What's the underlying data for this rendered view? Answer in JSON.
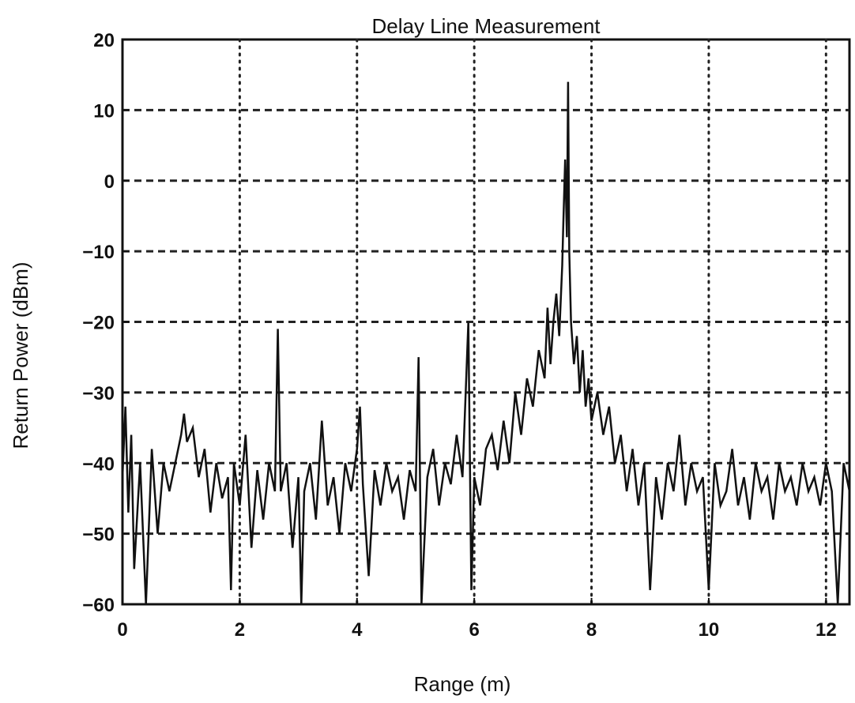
{
  "chart_data": {
    "type": "line",
    "title": "Delay Line Measurement",
    "xlabel": "Range (m)",
    "ylabel": "Return Power (dBm)",
    "xlim": [
      0,
      12.4
    ],
    "ylim": [
      -60,
      20
    ],
    "x_ticks": [
      0,
      2,
      4,
      6,
      8,
      10,
      12
    ],
    "y_ticks": [
      20,
      10,
      0,
      -10,
      -20,
      -30,
      -40,
      -50,
      -60
    ],
    "x_tick_labels": [
      "0",
      "2",
      "4",
      "6",
      "8",
      "10",
      "12"
    ],
    "y_tick_labels": [
      "20",
      "10",
      "0",
      "−10",
      "−20",
      "−30",
      "−40",
      "−50",
      "−60"
    ],
    "grid": true,
    "grid_style": "dotted",
    "noise_floor_dBm": -43,
    "series": [
      {
        "color": "#111111",
        "points": [
          [
            0.0,
            -42
          ],
          [
            0.05,
            -32
          ],
          [
            0.1,
            -47
          ],
          [
            0.15,
            -36
          ],
          [
            0.2,
            -55
          ],
          [
            0.3,
            -40
          ],
          [
            0.4,
            -60
          ],
          [
            0.5,
            -38
          ],
          [
            0.6,
            -50
          ],
          [
            0.7,
            -40
          ],
          [
            0.8,
            -44
          ],
          [
            0.9,
            -40
          ],
          [
            1.0,
            -36
          ],
          [
            1.05,
            -33
          ],
          [
            1.1,
            -37
          ],
          [
            1.2,
            -35
          ],
          [
            1.3,
            -42
          ],
          [
            1.4,
            -38
          ],
          [
            1.5,
            -47
          ],
          [
            1.6,
            -40
          ],
          [
            1.7,
            -45
          ],
          [
            1.8,
            -42
          ],
          [
            1.85,
            -58
          ],
          [
            1.9,
            -40
          ],
          [
            2.0,
            -46
          ],
          [
            2.1,
            -36
          ],
          [
            2.2,
            -52
          ],
          [
            2.3,
            -41
          ],
          [
            2.4,
            -48
          ],
          [
            2.5,
            -40
          ],
          [
            2.6,
            -44
          ],
          [
            2.65,
            -21
          ],
          [
            2.7,
            -44
          ],
          [
            2.8,
            -40
          ],
          [
            2.9,
            -52
          ],
          [
            3.0,
            -42
          ],
          [
            3.05,
            -60
          ],
          [
            3.1,
            -44
          ],
          [
            3.2,
            -40
          ],
          [
            3.3,
            -48
          ],
          [
            3.4,
            -34
          ],
          [
            3.5,
            -46
          ],
          [
            3.6,
            -42
          ],
          [
            3.7,
            -50
          ],
          [
            3.8,
            -40
          ],
          [
            3.9,
            -44
          ],
          [
            4.0,
            -38
          ],
          [
            4.05,
            -32
          ],
          [
            4.1,
            -43
          ],
          [
            4.2,
            -56
          ],
          [
            4.3,
            -41
          ],
          [
            4.4,
            -46
          ],
          [
            4.5,
            -40
          ],
          [
            4.6,
            -44
          ],
          [
            4.7,
            -42
          ],
          [
            4.8,
            -48
          ],
          [
            4.9,
            -41
          ],
          [
            5.0,
            -44
          ],
          [
            5.05,
            -25
          ],
          [
            5.1,
            -60
          ],
          [
            5.2,
            -42
          ],
          [
            5.3,
            -38
          ],
          [
            5.4,
            -46
          ],
          [
            5.5,
            -40
          ],
          [
            5.6,
            -43
          ],
          [
            5.7,
            -36
          ],
          [
            5.8,
            -42
          ],
          [
            5.9,
            -20
          ],
          [
            5.95,
            -58
          ],
          [
            6.0,
            -42
          ],
          [
            6.1,
            -46
          ],
          [
            6.2,
            -38
          ],
          [
            6.3,
            -36
          ],
          [
            6.4,
            -41
          ],
          [
            6.5,
            -34
          ],
          [
            6.6,
            -40
          ],
          [
            6.7,
            -30
          ],
          [
            6.8,
            -36
          ],
          [
            6.9,
            -28
          ],
          [
            7.0,
            -32
          ],
          [
            7.1,
            -24
          ],
          [
            7.2,
            -28
          ],
          [
            7.25,
            -18
          ],
          [
            7.3,
            -26
          ],
          [
            7.35,
            -20
          ],
          [
            7.4,
            -16
          ],
          [
            7.45,
            -22
          ],
          [
            7.5,
            -12
          ],
          [
            7.52,
            -6
          ],
          [
            7.55,
            3
          ],
          [
            7.58,
            -8
          ],
          [
            7.6,
            14
          ],
          [
            7.62,
            -10
          ],
          [
            7.65,
            -20
          ],
          [
            7.7,
            -26
          ],
          [
            7.75,
            -22
          ],
          [
            7.8,
            -30
          ],
          [
            7.85,
            -24
          ],
          [
            7.9,
            -32
          ],
          [
            7.95,
            -28
          ],
          [
            8.0,
            -34
          ],
          [
            8.1,
            -30
          ],
          [
            8.2,
            -36
          ],
          [
            8.3,
            -32
          ],
          [
            8.4,
            -40
          ],
          [
            8.5,
            -36
          ],
          [
            8.6,
            -44
          ],
          [
            8.7,
            -38
          ],
          [
            8.8,
            -46
          ],
          [
            8.9,
            -40
          ],
          [
            9.0,
            -58
          ],
          [
            9.1,
            -42
          ],
          [
            9.2,
            -48
          ],
          [
            9.3,
            -40
          ],
          [
            9.4,
            -44
          ],
          [
            9.5,
            -36
          ],
          [
            9.6,
            -46
          ],
          [
            9.7,
            -40
          ],
          [
            9.8,
            -44
          ],
          [
            9.9,
            -42
          ],
          [
            10.0,
            -58
          ],
          [
            10.1,
            -40
          ],
          [
            10.2,
            -46
          ],
          [
            10.3,
            -44
          ],
          [
            10.4,
            -38
          ],
          [
            10.5,
            -46
          ],
          [
            10.6,
            -42
          ],
          [
            10.7,
            -48
          ],
          [
            10.8,
            -40
          ],
          [
            10.9,
            -44
          ],
          [
            11.0,
            -42
          ],
          [
            11.1,
            -48
          ],
          [
            11.2,
            -40
          ],
          [
            11.3,
            -44
          ],
          [
            11.4,
            -42
          ],
          [
            11.5,
            -46
          ],
          [
            11.6,
            -40
          ],
          [
            11.7,
            -44
          ],
          [
            11.8,
            -42
          ],
          [
            11.9,
            -46
          ],
          [
            12.0,
            -40
          ],
          [
            12.1,
            -44
          ],
          [
            12.2,
            -60
          ],
          [
            12.3,
            -40
          ],
          [
            12.4,
            -44
          ]
        ]
      }
    ]
  }
}
